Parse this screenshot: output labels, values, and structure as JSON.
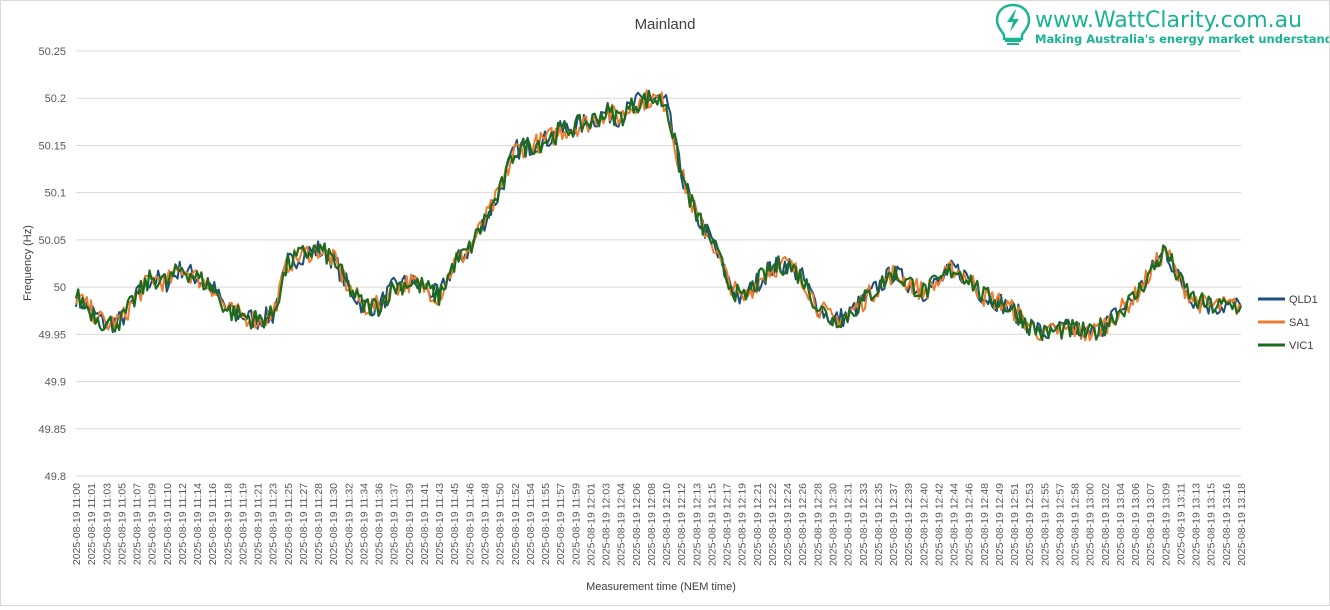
{
  "brand": {
    "name": "www.WattClarity.com.au",
    "tagline": "Making Australia's energy market understandable",
    "color": "#1ab394"
  },
  "chart_data": {
    "type": "line",
    "title": "Mainland",
    "xlabel": "Measurement time (NEM time)",
    "ylabel": "Frequency (Hz)",
    "ylim": [
      49.8,
      50.25
    ],
    "yticks": [
      "50.25",
      "50.2",
      "50.15",
      "50.1",
      "50.05",
      "50",
      "49.95",
      "49.9",
      "49.85",
      "49.8"
    ],
    "grid": true,
    "legend": "right",
    "x": [
      "2025-08-19 11:00",
      "2025-08-19 11:01",
      "2025-08-19 11:03",
      "2025-08-19 11:05",
      "2025-08-19 11:07",
      "2025-08-19 11:09",
      "2025-08-19 11:10",
      "2025-08-19 11:12",
      "2025-08-19 11:14",
      "2025-08-19 11:16",
      "2025-08-19 11:18",
      "2025-08-19 11:19",
      "2025-08-19 11:21",
      "2025-08-19 11:23",
      "2025-08-19 11:25",
      "2025-08-19 11:27",
      "2025-08-19 11:28",
      "2025-08-19 11:30",
      "2025-08-19 11:32",
      "2025-08-19 11:34",
      "2025-08-19 11:36",
      "2025-08-19 11:37",
      "2025-08-19 11:39",
      "2025-08-19 11:41",
      "2025-08-19 11:43",
      "2025-08-19 11:45",
      "2025-08-19 11:46",
      "2025-08-19 11:48",
      "2025-08-19 11:50",
      "2025-08-19 11:52",
      "2025-08-19 11:54",
      "2025-08-19 11:55",
      "2025-08-19 11:57",
      "2025-08-19 11:59",
      "2025-08-19 12:01",
      "2025-08-19 12:03",
      "2025-08-19 12:04",
      "2025-08-19 12:06",
      "2025-08-19 12:08",
      "2025-08-19 12:10",
      "2025-08-19 12:12",
      "2025-08-19 12:13",
      "2025-08-19 12:15",
      "2025-08-19 12:17",
      "2025-08-19 12:19",
      "2025-08-19 12:21",
      "2025-08-19 12:22",
      "2025-08-19 12:24",
      "2025-08-19 12:26",
      "2025-08-19 12:28",
      "2025-08-19 12:30",
      "2025-08-19 12:31",
      "2025-08-19 12:33",
      "2025-08-19 12:35",
      "2025-08-19 12:37",
      "2025-08-19 12:39",
      "2025-08-19 12:40",
      "2025-08-19 12:42",
      "2025-08-19 12:44",
      "2025-08-19 12:46",
      "2025-08-19 12:48",
      "2025-08-19 12:49",
      "2025-08-19 12:51",
      "2025-08-19 12:53",
      "2025-08-19 12:55",
      "2025-08-19 12:57",
      "2025-08-19 12:58",
      "2025-08-19 13:00",
      "2025-08-19 13:02",
      "2025-08-19 13:04",
      "2025-08-19 13:06",
      "2025-08-19 13:07",
      "2025-08-19 13:09",
      "2025-08-19 13:11",
      "2025-08-19 13:13",
      "2025-08-19 13:15",
      "2025-08-19 13:16",
      "2025-08-19 13:18"
    ],
    "series": [
      {
        "name": "QLD1",
        "color": "#1f4e79",
        "values": [
          49.99,
          49.975,
          49.96,
          49.965,
          49.99,
          50.01,
          50.005,
          50.02,
          50.01,
          50.0,
          49.975,
          49.97,
          49.965,
          49.97,
          50.025,
          50.035,
          50.04,
          50.03,
          50.0,
          49.98,
          49.98,
          50.0,
          50.005,
          50.0,
          49.99,
          50.025,
          50.04,
          50.07,
          50.1,
          50.145,
          50.15,
          50.155,
          50.165,
          50.17,
          50.175,
          50.185,
          50.18,
          50.195,
          50.2,
          50.195,
          50.12,
          50.075,
          50.05,
          50.01,
          49.985,
          50.005,
          50.02,
          50.025,
          50.01,
          49.98,
          49.965,
          49.97,
          49.985,
          50.0,
          50.015,
          50.005,
          49.995,
          50.005,
          50.02,
          50.01,
          49.99,
          49.985,
          49.975,
          49.96,
          49.95,
          49.955,
          49.955,
          49.95,
          49.96,
          49.975,
          49.99,
          50.015,
          50.04,
          50.005,
          49.985,
          49.98,
          49.98,
          49.98
        ]
      },
      {
        "name": "SA1",
        "color": "#ed7d31",
        "values": [
          49.99,
          49.975,
          49.96,
          49.965,
          49.99,
          50.01,
          50.005,
          50.02,
          50.01,
          50.0,
          49.975,
          49.97,
          49.965,
          49.97,
          50.025,
          50.035,
          50.04,
          50.03,
          50.0,
          49.98,
          49.98,
          50.0,
          50.005,
          50.0,
          49.99,
          50.025,
          50.04,
          50.07,
          50.1,
          50.145,
          50.15,
          50.155,
          50.165,
          50.17,
          50.175,
          50.185,
          50.18,
          50.195,
          50.2,
          50.195,
          50.12,
          50.075,
          50.05,
          50.01,
          49.985,
          50.005,
          50.02,
          50.025,
          50.01,
          49.98,
          49.965,
          49.97,
          49.985,
          50.0,
          50.015,
          50.005,
          49.995,
          50.005,
          50.02,
          50.01,
          49.99,
          49.985,
          49.975,
          49.96,
          49.95,
          49.955,
          49.955,
          49.95,
          49.96,
          49.975,
          49.99,
          50.015,
          50.04,
          50.005,
          49.985,
          49.98,
          49.98,
          49.98
        ]
      },
      {
        "name": "VIC1",
        "color": "#1e6b1e",
        "values": [
          49.99,
          49.975,
          49.96,
          49.965,
          49.99,
          50.01,
          50.005,
          50.02,
          50.01,
          50.0,
          49.975,
          49.97,
          49.965,
          49.97,
          50.025,
          50.035,
          50.04,
          50.03,
          50.0,
          49.98,
          49.98,
          50.0,
          50.005,
          50.0,
          49.99,
          50.025,
          50.04,
          50.07,
          50.1,
          50.145,
          50.15,
          50.155,
          50.165,
          50.17,
          50.175,
          50.185,
          50.18,
          50.195,
          50.2,
          50.195,
          50.12,
          50.075,
          50.05,
          50.01,
          49.985,
          50.005,
          50.02,
          50.025,
          50.01,
          49.98,
          49.965,
          49.97,
          49.985,
          50.0,
          50.015,
          50.005,
          49.995,
          50.005,
          50.02,
          50.01,
          49.99,
          49.985,
          49.975,
          49.96,
          49.95,
          49.955,
          49.955,
          49.95,
          49.96,
          49.975,
          49.99,
          50.015,
          50.04,
          50.005,
          49.985,
          49.98,
          49.98,
          49.98
        ]
      }
    ]
  }
}
